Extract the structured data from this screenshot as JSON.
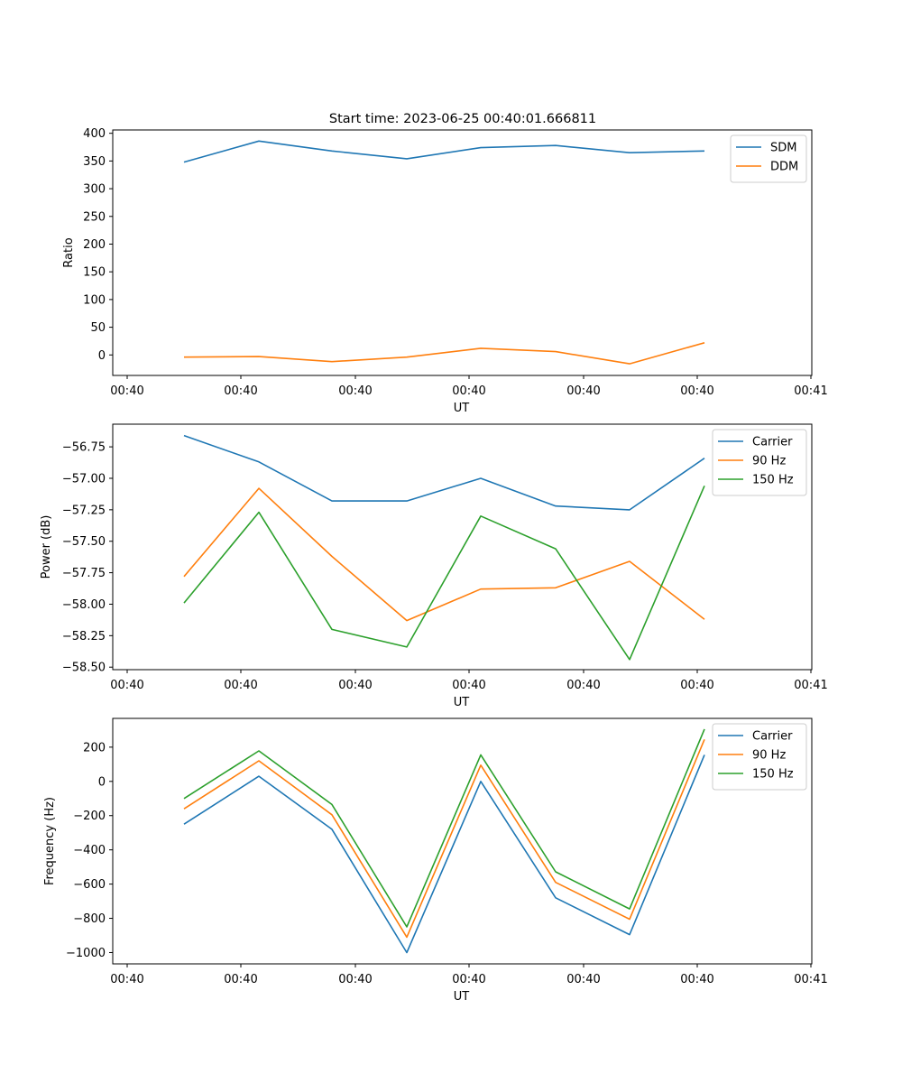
{
  "figure": {
    "title": "Start time: 2023-06-25 00:40:01.666811"
  },
  "chart_data": [
    {
      "type": "line",
      "xlabel": "UT",
      "ylabel": "Ratio",
      "x_tick_labels": [
        "00:40",
        "00:40",
        "00:40",
        "00:40",
        "00:40",
        "00:40",
        "00:40",
        "00:41"
      ],
      "y_ticks": [
        0,
        50,
        100,
        150,
        200,
        250,
        300,
        350,
        400
      ],
      "y_tick_labels": [
        "0",
        "50",
        "100",
        "150",
        "200",
        "250",
        "300",
        "350",
        "400"
      ],
      "ylim": [
        -37,
        406
      ],
      "grid": false,
      "legend": "top-right",
      "series": [
        {
          "name": "SDM",
          "color": "#1f77b4",
          "values": [
            348,
            386,
            368,
            354,
            374,
            378,
            365,
            368
          ]
        },
        {
          "name": "DDM",
          "color": "#ff7f0e",
          "values": [
            -4,
            -3,
            -12,
            -4,
            12,
            6,
            -16,
            22
          ]
        }
      ]
    },
    {
      "type": "line",
      "xlabel": "UT",
      "ylabel": "Power (dB)",
      "x_tick_labels": [
        "00:40",
        "00:40",
        "00:40",
        "00:40",
        "00:40",
        "00:40",
        "00:40",
        "00:41"
      ],
      "y_ticks": [
        -58.5,
        -58.25,
        -58.0,
        -57.75,
        -57.5,
        -57.25,
        -57.0,
        -56.75
      ],
      "y_tick_labels": [
        "−58.50",
        "−58.25",
        "−58.00",
        "−57.75",
        "−57.50",
        "−57.25",
        "−57.00",
        "−56.75"
      ],
      "ylim": [
        -58.52,
        -56.57
      ],
      "grid": false,
      "legend": "top-right",
      "series": [
        {
          "name": "Carrier",
          "color": "#1f77b4",
          "values": [
            -56.66,
            -56.87,
            -57.18,
            -57.18,
            -57.0,
            -57.22,
            -57.25,
            -56.84
          ]
        },
        {
          "name": "90 Hz",
          "color": "#ff7f0e",
          "values": [
            -57.78,
            -57.08,
            -57.62,
            -58.13,
            -57.88,
            -57.87,
            -57.66,
            -58.12
          ]
        },
        {
          "name": "150 Hz",
          "color": "#2ca02c",
          "values": [
            -57.99,
            -57.27,
            -58.2,
            -58.34,
            -57.3,
            -57.56,
            -58.44,
            -57.06
          ]
        }
      ]
    },
    {
      "type": "line",
      "xlabel": "UT",
      "ylabel": "Frequency (Hz)",
      "x_tick_labels": [
        "00:40",
        "00:40",
        "00:40",
        "00:40",
        "00:40",
        "00:40",
        "00:40",
        "00:41"
      ],
      "y_ticks": [
        -1000,
        -800,
        -600,
        -400,
        -200,
        0,
        200
      ],
      "y_tick_labels": [
        "−1000",
        "−800",
        "−600",
        "−400",
        "−200",
        "0",
        "200"
      ],
      "ylim": [
        -1066,
        368
      ],
      "grid": false,
      "legend": "top-right",
      "series": [
        {
          "name": "Carrier",
          "color": "#1f77b4",
          "values": [
            -250,
            30,
            -280,
            -1000,
            0,
            -680,
            -895,
            155
          ]
        },
        {
          "name": "90 Hz",
          "color": "#ff7f0e",
          "values": [
            -160,
            120,
            -195,
            -910,
            95,
            -590,
            -805,
            245
          ]
        },
        {
          "name": "150 Hz",
          "color": "#2ca02c",
          "values": [
            -100,
            178,
            -135,
            -850,
            155,
            -528,
            -745,
            305
          ]
        }
      ]
    }
  ]
}
